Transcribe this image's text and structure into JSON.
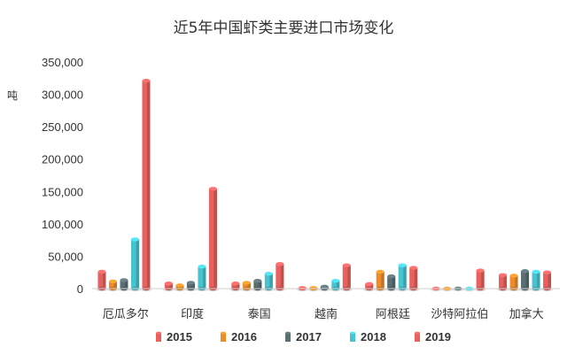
{
  "chart_data": {
    "type": "bar",
    "title": "近5年中国虾类主要进口市场变化",
    "ylabel": "吨",
    "xlabel": "",
    "ylim": [
      0,
      350000
    ],
    "yticks": [
      "0",
      "50,000",
      "100,000",
      "150,000",
      "200,000",
      "250,000",
      "300,000",
      "350,000"
    ],
    "ytick_values": [
      0,
      50000,
      100000,
      150000,
      200000,
      250000,
      300000,
      350000
    ],
    "grid": false,
    "legend_position": "bottom",
    "categories": [
      "厄瓜多尔",
      "印度",
      "泰国",
      "越南",
      "阿根廷",
      "沙特阿拉伯",
      "加拿大"
    ],
    "series": [
      {
        "name": "2015",
        "color": "#e8615f",
        "values": [
          26000,
          8000,
          8000,
          1000,
          7000,
          0,
          21000
        ]
      },
      {
        "name": "2016",
        "color": "#ef8c2a",
        "values": [
          11000,
          5000,
          9000,
          1000,
          26000,
          0,
          20000
        ]
      },
      {
        "name": "2017",
        "color": "#5b6e73",
        "values": [
          13000,
          9000,
          12000,
          3000,
          19000,
          0,
          27000
        ]
      },
      {
        "name": "2018",
        "color": "#48c4d1",
        "values": [
          76000,
          34000,
          23000,
          12000,
          36000,
          0,
          26000
        ]
      },
      {
        "name": "2019",
        "color": "#e8615f",
        "values": [
          321000,
          154000,
          38000,
          36000,
          32000,
          28000,
          25000
        ]
      }
    ]
  }
}
